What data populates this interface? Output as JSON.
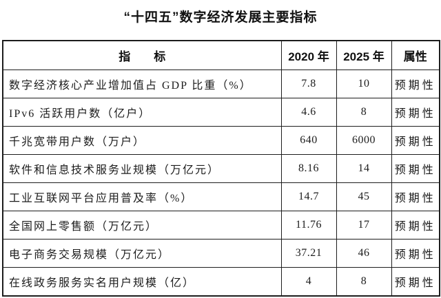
{
  "title": "“十四五”数字经济发展主要指标",
  "table": {
    "headers": {
      "indicator": "指　　标",
      "y2020": "2020 年",
      "y2025": "2025 年",
      "attribute": "属性"
    },
    "rows": [
      {
        "indicator": "数字经济核心产业增加值占 GDP 比重（%）",
        "y2020": "7.8",
        "y2025": "10",
        "attribute": "预期性"
      },
      {
        "indicator": "IPv6 活跃用户数（亿户）",
        "y2020": "4.6",
        "y2025": "8",
        "attribute": "预期性"
      },
      {
        "indicator": "千兆宽带用户数（万户）",
        "y2020": "640",
        "y2025": "6000",
        "attribute": "预期性"
      },
      {
        "indicator": "软件和信息技术服务业规模（万亿元）",
        "y2020": "8.16",
        "y2025": "14",
        "attribute": "预期性"
      },
      {
        "indicator": "工业互联网平台应用普及率（%）",
        "y2020": "14.7",
        "y2025": "45",
        "attribute": "预期性"
      },
      {
        "indicator": "全国网上零售额（万亿元）",
        "y2020": "11.76",
        "y2025": "17",
        "attribute": "预期性"
      },
      {
        "indicator": "电子商务交易规模（万亿元）",
        "y2020": "37.21",
        "y2025": "46",
        "attribute": "预期性"
      },
      {
        "indicator": "在线政务服务实名用户规模（亿）",
        "y2020": "4",
        "y2025": "8",
        "attribute": "预期性"
      }
    ]
  },
  "colors": {
    "text": "#1c1c1c",
    "border": "#1c1c1c",
    "background": "#ffffff"
  }
}
